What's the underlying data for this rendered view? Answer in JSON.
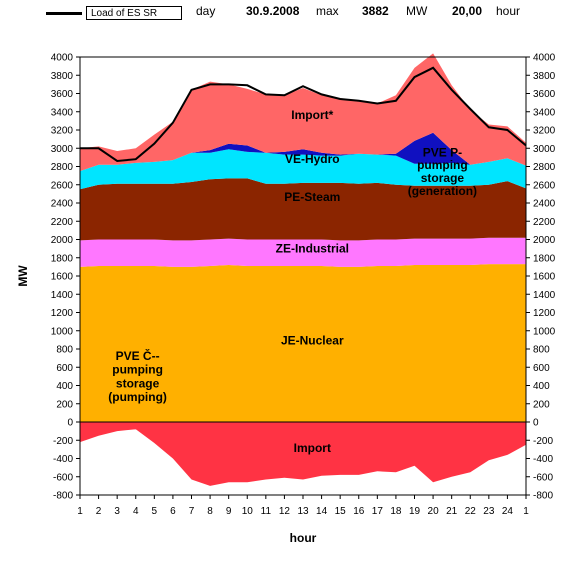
{
  "header": {
    "legend_label": "Load of ES SR",
    "day_label": "day",
    "date": "30.9.2008",
    "max_label": "max",
    "max_value": "3882",
    "unit_label": "MW",
    "time_value": "20,00",
    "time_label": "hour"
  },
  "chart_data": {
    "type": "area",
    "x_tick_labels": [
      "1",
      "2",
      "3",
      "4",
      "5",
      "6",
      "7",
      "8",
      "9",
      "10",
      "11",
      "12",
      "13",
      "14",
      "15",
      "16",
      "17",
      "18",
      "19",
      "20",
      "21",
      "22",
      "23",
      "24",
      "1"
    ],
    "xlabel": "hour",
    "ylabel": "MW",
    "ylim": [
      -800,
      4000
    ],
    "ytick_step": 200,
    "grid": false,
    "stack_series": [
      {
        "name": "JE-Nuclear",
        "color": "#ffb000",
        "values": [
          1700,
          1710,
          1710,
          1710,
          1710,
          1700,
          1700,
          1710,
          1720,
          1710,
          1710,
          1710,
          1710,
          1710,
          1700,
          1700,
          1710,
          1710,
          1720,
          1720,
          1720,
          1720,
          1730,
          1730,
          1730
        ]
      },
      {
        "name": "ZE-Industrial",
        "color": "#ff77ff",
        "values": [
          290,
          290,
          290,
          290,
          290,
          290,
          290,
          290,
          290,
          290,
          290,
          290,
          290,
          290,
          290,
          290,
          290,
          290,
          290,
          290,
          290,
          290,
          290,
          290,
          290
        ]
      },
      {
        "name": "PE-Steam",
        "color": "#8b2500",
        "values": [
          560,
          600,
          610,
          610,
          610,
          620,
          640,
          660,
          660,
          670,
          610,
          610,
          620,
          620,
          630,
          620,
          620,
          600,
          580,
          580,
          580,
          580,
          580,
          620,
          540
        ]
      },
      {
        "name": "VE-Hydro",
        "color": "#00e5ff",
        "values": [
          200,
          220,
          210,
          230,
          240,
          260,
          320,
          290,
          320,
          290,
          340,
          320,
          310,
          300,
          300,
          330,
          310,
          320,
          240,
          240,
          250,
          230,
          250,
          250,
          250
        ]
      },
      {
        "name": "PVE P-pumping storage (generation)",
        "color": "#1010c0",
        "values": [
          0,
          0,
          0,
          0,
          0,
          0,
          0,
          30,
          60,
          70,
          0,
          30,
          60,
          30,
          10,
          0,
          0,
          20,
          250,
          340,
          140,
          0,
          0,
          0,
          0
        ]
      },
      {
        "name": "Import*",
        "color": "#ff6666",
        "values": [
          250,
          200,
          150,
          160,
          300,
          420,
          690,
          750,
          650,
          620,
          640,
          620,
          670,
          630,
          620,
          580,
          560,
          640,
          800,
          870,
          710,
          600,
          410,
          350,
          250
        ]
      }
    ],
    "negative_series": [
      {
        "name": "PVE Č-- pumping storage (pumping)",
        "color": "#cc00cc",
        "values": [
          0,
          -40,
          -60,
          -80,
          -80,
          -30,
          0,
          0,
          0,
          0,
          0,
          0,
          0,
          0,
          0,
          0,
          0,
          0,
          0,
          0,
          0,
          0,
          0,
          -30,
          -50
        ]
      },
      {
        "name": "Import",
        "color": "#ff3344",
        "values": [
          -220,
          -150,
          -100,
          -80,
          -230,
          -400,
          -630,
          -700,
          -660,
          -660,
          -630,
          -610,
          -630,
          -590,
          -580,
          -580,
          -540,
          -550,
          -480,
          -660,
          -600,
          -550,
          -420,
          -360,
          -250
        ]
      }
    ],
    "load_line": {
      "name": "Load of ES SR",
      "values": [
        3000,
        3000,
        2860,
        2880,
        3050,
        3280,
        3640,
        3700,
        3700,
        3690,
        3590,
        3580,
        3680,
        3590,
        3540,
        3520,
        3490,
        3520,
        3780,
        3882,
        3640,
        3430,
        3230,
        3200,
        3030
      ]
    },
    "annotations": [
      {
        "text": "Import*",
        "x": 13.5,
        "y": 3320
      },
      {
        "text": "VE-Hydro",
        "x": 13.5,
        "y": 2840
      },
      {
        "text": "PVE P-",
        "x": 20.5,
        "y": 2910
      },
      {
        "text": "pumping",
        "x": 20.5,
        "y": 2770
      },
      {
        "text": "storage",
        "x": 20.5,
        "y": 2630
      },
      {
        "text": "(generation)",
        "x": 20.5,
        "y": 2490
      },
      {
        "text": "PE-Steam",
        "x": 13.5,
        "y": 2420
      },
      {
        "text": "ZE-Industrial",
        "x": 13.5,
        "y": 1860
      },
      {
        "text": "JE-Nuclear",
        "x": 13.5,
        "y": 850
      },
      {
        "text": "PVE Č--",
        "x": 4.1,
        "y": 680
      },
      {
        "text": "pumping",
        "x": 4.1,
        "y": 530
      },
      {
        "text": "storage",
        "x": 4.1,
        "y": 380
      },
      {
        "text": "(pumping)",
        "x": 4.1,
        "y": 230
      },
      {
        "text": "Import",
        "x": 13.5,
        "y": -330
      }
    ]
  }
}
